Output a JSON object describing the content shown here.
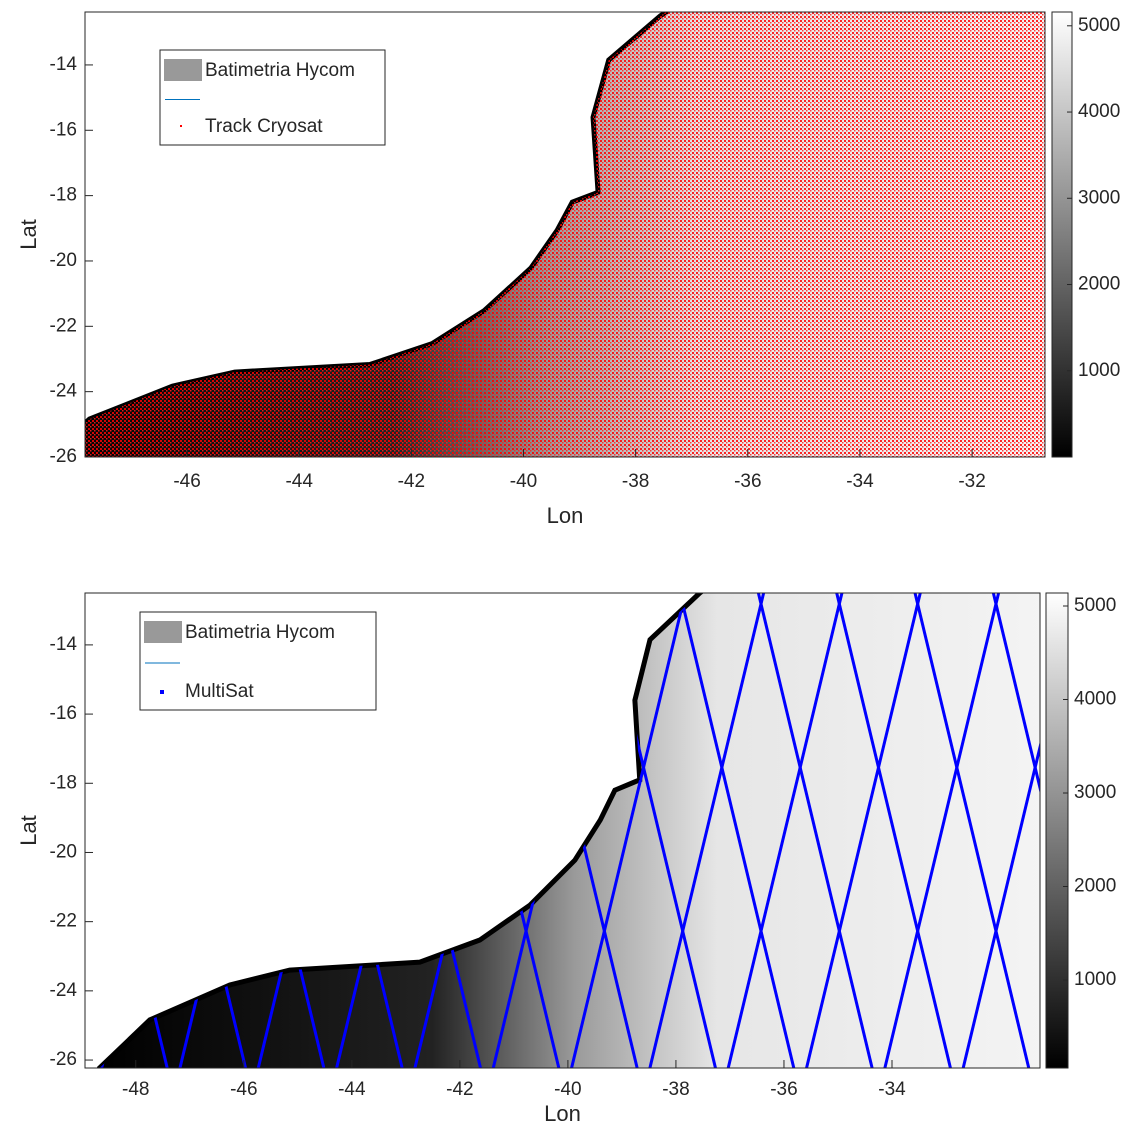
{
  "chart_data": [
    {
      "type": "map",
      "xlabel": "Lon",
      "ylabel": "Lat",
      "xlim": [
        -47.82,
        -30.7
      ],
      "ylim": [
        -26,
        -12.38
      ],
      "xticks": [
        -46,
        -44,
        -42,
        -40,
        -38,
        -36,
        -34,
        -32
      ],
      "yticks": [
        -26,
        -24,
        -22,
        -20,
        -18,
        -16,
        -14
      ],
      "clim": [
        0,
        5160
      ],
      "cticks": [
        1000,
        2000,
        3000,
        4000,
        5000
      ],
      "series": [
        {
          "name": "Batimetria Hycom",
          "color": "#999999"
        },
        {
          "name": "Track Cryosat",
          "color": "#ff0000"
        }
      ]
    },
    {
      "type": "map",
      "xlabel": "Lon",
      "ylabel": "Lat",
      "xlim": [
        -48.94,
        -31.26
      ],
      "ylim": [
        -26.23,
        -12.5
      ],
      "xticks": [
        -48,
        -46,
        -44,
        -42,
        -40,
        -38,
        -36,
        -34
      ],
      "yticks": [
        -26,
        -24,
        -22,
        -20,
        -18,
        -16,
        -14
      ],
      "clim": [
        59,
        5139
      ],
      "cticks": [
        1000,
        2000,
        3000,
        4000,
        5000
      ],
      "series": [
        {
          "name": "Batimetria Hycom",
          "color": "#999999"
        },
        {
          "name": "MultiSat",
          "color": "#0000ff"
        }
      ]
    }
  ]
}
